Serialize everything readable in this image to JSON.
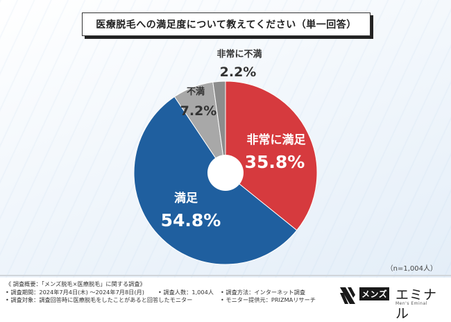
{
  "title": "医療脱毛への満足度について教えてください（単一回答）",
  "chart_data": {
    "type": "pie",
    "categories": [
      "非常に満足",
      "満足",
      "不満",
      "非常に不満"
    ],
    "values": [
      35.8,
      54.8,
      7.2,
      2.2
    ],
    "colors": [
      "#d63a3e",
      "#1f5f9f",
      "#a8a8a8",
      "#8c8c8c"
    ],
    "donut_hole": true
  },
  "labels": {
    "very_satisfied": {
      "name": "非常に満足",
      "pct": "35.8%"
    },
    "satisfied": {
      "name": "満足",
      "pct": "54.8%"
    },
    "dissatisfied": {
      "name": "不満",
      "pct": "7.2%"
    },
    "very_dissatisfied": {
      "name": "非常に不満",
      "pct": "2.2%"
    }
  },
  "sample_size": "（n=1,004人）",
  "footer": {
    "overview": "《 調査概要：「メンズ脱毛×医療脱毛」に関する調査》",
    "period": "• 調査期間：2024年7月4日(木) ～2024年7月8日(月)",
    "people": "• 調査人数：1,004人",
    "method": "• 調査方法：インターネット調査",
    "target": "• 調査対象：調査回答時に医療脱毛をしたことがあると回答したモニター",
    "provider": "• モニター提供元：PRIZMAリサーチ"
  },
  "logo": {
    "mens": "メンズ",
    "eminal": "エミナル",
    "tagline": "Men's Eminal"
  }
}
